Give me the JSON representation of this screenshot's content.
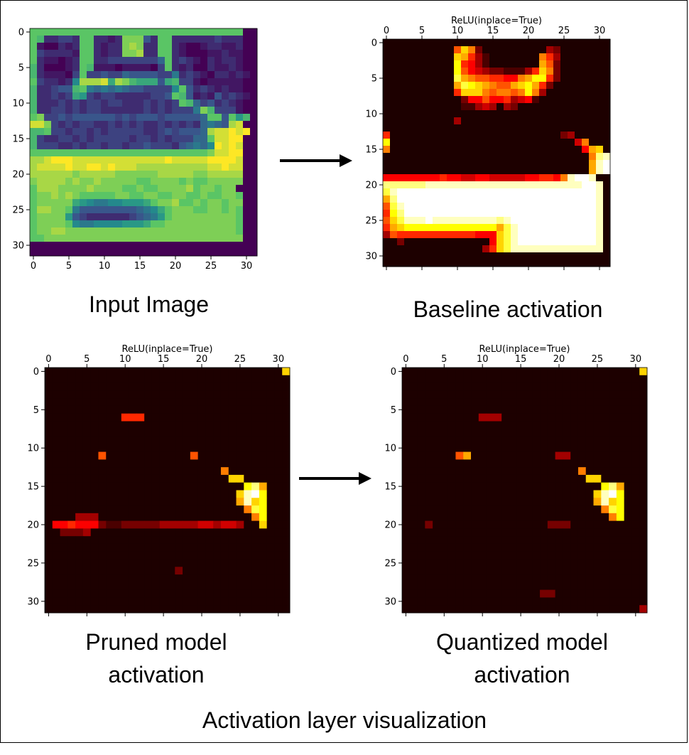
{
  "figure": {
    "title": "Activation layer visualization",
    "arrows": [
      "right-arrow",
      "right-arrow"
    ]
  },
  "chart_data": [
    {
      "type": "heatmap",
      "id": "input",
      "title": "",
      "caption_lines": [
        "Input Image"
      ],
      "colormap": "viridis",
      "tick_position": "bottom",
      "x_ticks": [
        0,
        5,
        10,
        15,
        20,
        25,
        30
      ],
      "y_ticks": [
        0,
        5,
        10,
        15,
        20,
        25,
        30
      ],
      "grid": false,
      "rows": [
        "BBBBBBBBBBBBBBBBBBBBBBBBBBBBBB00",
        "BA22332BB2212CCC42BB222222322200",
        "B100212BB2122CDC22BB210012211200",
        "B322221BB2122CCD22BB210001121100",
        "B211012BB2233333335B232102122100",
        "A200012BA1110111103B212002112100",
        "A211103B3343354444336232102212100",
        "B322127DDDE9DCA99949A33101111100",
        "A22344AB6565654433337B4232121100",
        "A2232398323322222334BA41214232100",
        "A22232323323322232323BA534232100",
        "A22332323322222232323336CA333100",
        "BC33434444443434443444445BB4B8A00",
        "EEC3232332232323223232325654DE00",
        "AAB3323323233333223434445DEEFEF00",
        "A322332323333323323233355BEEFF00",
        "A3332232332332334333245657FEFE00",
        "BBBBBBBBBBBBBBBBBBBBBBBBBCEEFF00",
        "DDEFFFEEEEEEEEEEEEEFEEEEEFFFFE00",
        "DEEEEFEEFFEFEEEDDDDDDDDDDEEFEE00",
        "DDDDDDCDDDDDCCCCCCDDDDDCCDDDDD00",
        "CDDDDCDCCDCCCCCBBCCCCBCBBCCCCC00",
        "BDDDCCCCDCCCCBBCBBCCCCDBCCBCC00",
        "BCCDCDCBBBBBCCBBCCBBCCBBCBBCCB00",
        "BCCCCC98766778889BCCDBBCBCCBCC00",
        "BDDCCB6444444445679BCCCBBCCBCB00",
        "BCCCC84322222234568BCCCCCCCCCB00",
        "BCCCCB76677778889BBCCCCCCCCCCB00",
        "BCCDDCCCCCCCCCCCCCCCCCCCCCCCCB00",
        "BBCCCCCCCCCCCCCCCCCCCCCCCCCCCC00",
        "00000000000000000000000000000000",
        "00000000000000000000000000000000"
      ]
    },
    {
      "type": "heatmap",
      "id": "baseline",
      "title": "ReLU(inplace=True)",
      "caption_lines": [
        "Baseline activation"
      ],
      "colormap": "hot",
      "tick_position": "top",
      "x_ticks": [
        0,
        5,
        10,
        15,
        20,
        25,
        30
      ],
      "y_ticks": [
        0,
        5,
        10,
        15,
        20,
        25,
        30
      ],
      "grid": false,
      "rows": [
        "00000000000000000000000000000000",
        "00000000007A820000000003200000000",
        "0000000000A9631000000086300000000",
        "0000000000B6531000000097200000000",
        "0000000000B75432211136A8200000000",
        "0000000000C9877665589BB6200000000",
        "00000000009CBA98779AB962000000000",
        "00000000006AAA878878B83000000000",
        "000000000002557556345100000000000",
        "000000000001134303200000000000000",
        "00000000000000000000000000000000",
        "000000000030000000000000000000000",
        "00000000000000000000000000000000",
        "600000000000000000000000023000000",
        "B0000000000000000000000000048000000",
        "800000000000000000000000000059A00000",
        "000000000000000000000000000008DEC000",
        "000000000000000000000000000009EFD000",
        "000000000000000000000000000009EFE000",
        "55555555655445544444556658EFFE000",
        "DDDDDDEEEEEEEEEEEEEEEEEEEEEEFFE000",
        "CEFFFFFFFFFFFFFFFFFFFFFFFFFFFFE000",
        "9DFFFFFFFFFFFFFFFFFFFFFFFFFFFFE000",
        "7CEFFFFFFFFFFFFFFFFFFFFFFFFFFFE000",
        "6BDFFFFFFFFFFFFFFFFFFFFFFFFFFFE000",
        "7ACEEEFEEEEEEEEEDEFFFFFFFFFFFFE000",
        "69ABBBBBBBBBBBBB9CEFFFFFFFFFFFE000",
        "3766666666666555ACEFFFFFFFFFFFE000",
        "0020000000000005ACEFFFFFFFFFFFE000",
        "0000000000000036ACEEEEEEEEEEEEE000",
        "00000000000000000000000000000000",
        "00000000000000000000000000000000"
      ]
    },
    {
      "type": "heatmap",
      "id": "pruned",
      "title": "ReLU(inplace=True)",
      "caption_lines": [
        "Pruned model",
        "activation"
      ],
      "colormap": "hot",
      "tick_position": "top",
      "x_ticks": [
        0,
        5,
        10,
        15,
        20,
        25,
        30
      ],
      "y_ticks": [
        0,
        5,
        10,
        15,
        20,
        25,
        30
      ],
      "grid": false,
      "rows": [
        "0000000000000000000000000000000A",
        "00000000000000000000000000000000",
        "00000000000000000000000000000000",
        "00000000000000000000000000000000",
        "00000000000000000000000000000000",
        "00000000000000000000000000000000",
        "000000000066600000000000000000000",
        "00000000000000000000000000000000",
        "00000000000000000000000000000000",
        "00000000000000000000000000000000",
        "00000000000000000000000000000000",
        "000000070000000000070000000000000",
        "00000000000000000000000000000000",
        "00000000000000000000000800000000",
        "000000000000000000000000AA0000000",
        "00000000000000000000000000BD90000",
        "0000000000000000000000000AEFB0000",
        "00000000000000000000000009EAB0000",
        "000000000000000000000000008CB0000",
        "0000333000000000000000000008B0000",
        "0556555211222223333344344300A0000",
        "002223000000000000000000000000000",
        "00000000000000000000000000000000",
        "00000000000000000000000000000000",
        "00000000000000000000000000000000",
        "00000000000000000000000000000000",
        "000000000000000002000000000000000",
        "00000000000000000000000000000000",
        "00000000000000000000000000000000",
        "00000000000000000000000000000000",
        "00000000000000000000000000000000",
        "00000000000000000000000000000000"
      ]
    },
    {
      "type": "heatmap",
      "id": "quantized",
      "title": "ReLU(inplace=True)",
      "caption_lines": [
        "Quantized model",
        "activation"
      ],
      "colormap": "hot",
      "tick_position": "top",
      "x_ticks": [
        0,
        5,
        10,
        15,
        20,
        25,
        30
      ],
      "y_ticks": [
        0,
        5,
        10,
        15,
        20,
        25,
        30
      ],
      "grid": false,
      "rows": [
        "0000000000000000000000000000000A",
        "00000000000000000000000000000000",
        "00000000000000000000000000000000",
        "00000000000000000000000000000000",
        "00000000000000000000000000000000",
        "00000000000000000000000000000000",
        "000000000033300000000000000000000",
        "00000000000000000000000000000000",
        "00000000000000000000000000000000",
        "00000000000000000000000000000000",
        "00000000000000000000000000000000",
        "000000079000000000003300000000000",
        "00000000000000000000000000000000",
        "00000000000000000000000800000000",
        "000000000000000000000000AA0000000",
        "00000000000000000000000000BD90000",
        "0000000000000000000000000AEFB0000",
        "00000000000000000000000009EAB0000",
        "000000000000000000000000008CB0000",
        "0000000000000000000000000008B0000",
        "000200000000000000022200000000000",
        "00000000000000000000000000000000",
        "00000000000000000000000000000000",
        "00000000000000000000000000000000",
        "00000000000000000000000000000000",
        "00000000000000000000000000000000",
        "00000000000000000000000000000000",
        "00000000000000000000000000000000",
        "00000000000000000000000000000000",
        "00000000000000000022000000000000",
        "00000000000000000000000000000000",
        "00000000000000000000000000000003"
      ]
    }
  ]
}
